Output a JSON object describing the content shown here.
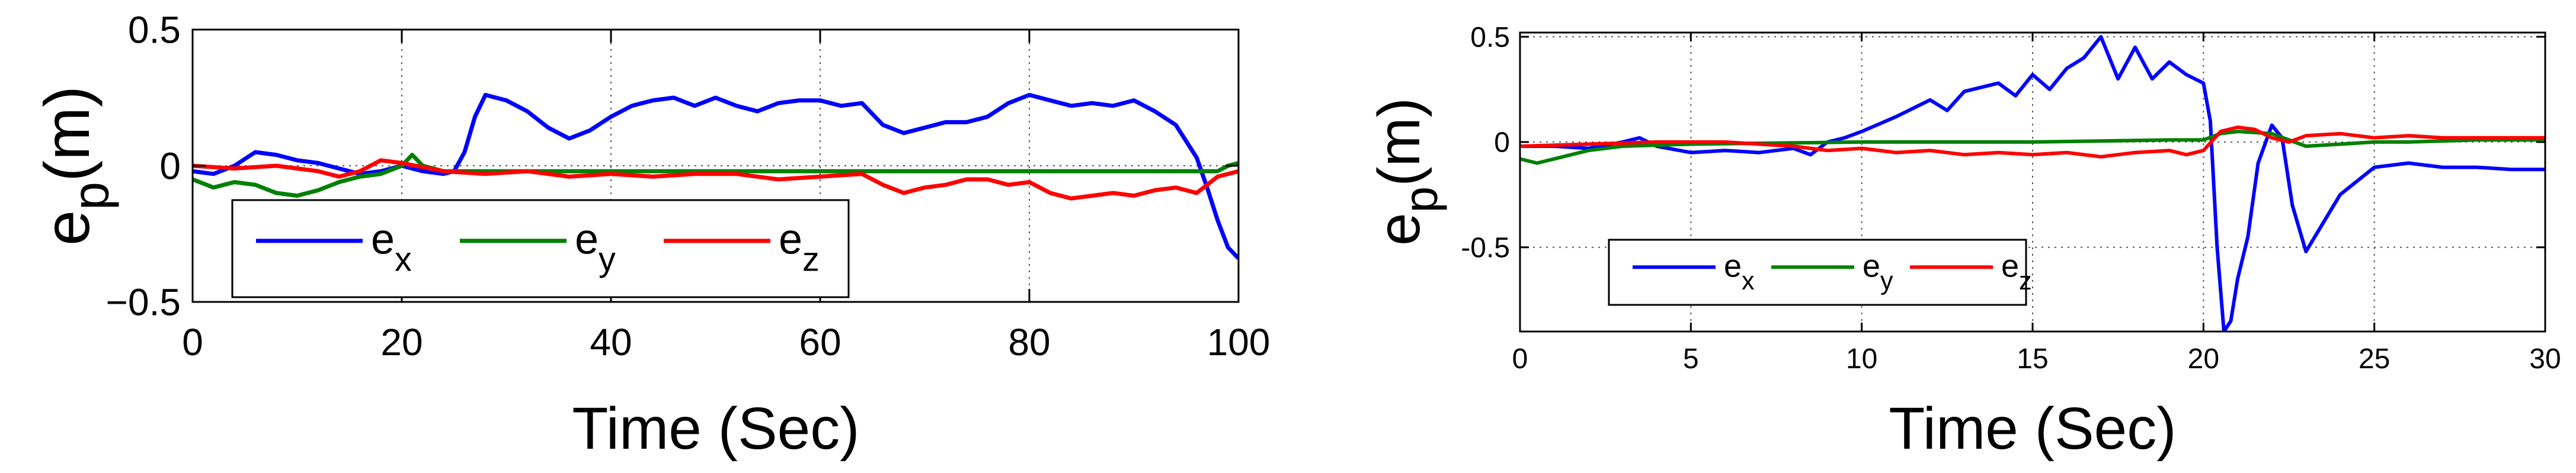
{
  "chart_data": [
    {
      "type": "line",
      "xlabel": "Time (Sec)",
      "ylabel_main": "e",
      "ylabel_sub": "p",
      "ylabel_unit": "(m)",
      "xlim": [
        0,
        100
      ],
      "ylim": [
        -0.5,
        0.5
      ],
      "xticks": [
        0,
        20,
        40,
        60,
        80,
        100
      ],
      "xtick_labels": [
        "0",
        "20",
        "40",
        "60",
        "80",
        "100"
      ],
      "yticks": [
        0.5,
        0,
        -0.5
      ],
      "ytick_labels": [
        "0.5",
        "0",
        "−0.5"
      ],
      "grid": true,
      "legend_position": "bottom-left",
      "series": [
        {
          "name": "e",
          "name_sub": "x",
          "color": "#0000ff",
          "x": [
            0,
            2,
            4,
            6,
            8,
            10,
            12,
            14,
            16,
            18,
            20,
            22,
            24,
            25,
            26,
            27,
            28,
            30,
            32,
            34,
            36,
            38,
            40,
            42,
            44,
            46,
            48,
            50,
            52,
            54,
            56,
            58,
            60,
            62,
            64,
            66,
            68,
            70,
            72,
            74,
            76,
            78,
            80,
            82,
            84,
            86,
            88,
            90,
            92,
            94,
            96,
            97,
            98,
            99,
            100
          ],
          "y": [
            -0.02,
            -0.03,
            0.0,
            0.05,
            0.04,
            0.02,
            0.01,
            -0.01,
            -0.03,
            -0.02,
            0.0,
            -0.02,
            -0.03,
            -0.02,
            0.05,
            0.18,
            0.26,
            0.24,
            0.2,
            0.14,
            0.1,
            0.13,
            0.18,
            0.22,
            0.24,
            0.25,
            0.22,
            0.25,
            0.22,
            0.2,
            0.23,
            0.24,
            0.24,
            0.22,
            0.23,
            0.15,
            0.12,
            0.14,
            0.16,
            0.16,
            0.18,
            0.23,
            0.26,
            0.24,
            0.22,
            0.23,
            0.22,
            0.24,
            0.2,
            0.15,
            0.03,
            -0.08,
            -0.2,
            -0.3,
            -0.34
          ]
        },
        {
          "name": "e",
          "name_sub": "y",
          "color": "#008000",
          "x": [
            0,
            2,
            4,
            6,
            8,
            10,
            12,
            14,
            16,
            18,
            20,
            21,
            22,
            24,
            26,
            30,
            40,
            50,
            60,
            70,
            80,
            90,
            95,
            98,
            99,
            100
          ],
          "y": [
            -0.05,
            -0.08,
            -0.06,
            -0.07,
            -0.1,
            -0.11,
            -0.09,
            -0.06,
            -0.04,
            -0.03,
            0.0,
            0.04,
            0.0,
            -0.02,
            -0.02,
            -0.02,
            -0.02,
            -0.02,
            -0.02,
            -0.02,
            -0.02,
            -0.02,
            -0.02,
            -0.02,
            0.0,
            0.01
          ]
        },
        {
          "name": "e",
          "name_sub": "z",
          "color": "#ff0000",
          "x": [
            0,
            4,
            8,
            12,
            14,
            16,
            18,
            20,
            24,
            28,
            32,
            36,
            40,
            44,
            48,
            52,
            56,
            60,
            64,
            66,
            68,
            70,
            72,
            74,
            76,
            78,
            80,
            82,
            84,
            86,
            88,
            90,
            92,
            94,
            96,
            98,
            100
          ],
          "y": [
            0.0,
            -0.01,
            0.0,
            -0.02,
            -0.04,
            -0.02,
            0.02,
            0.01,
            -0.02,
            -0.03,
            -0.02,
            -0.04,
            -0.03,
            -0.04,
            -0.03,
            -0.03,
            -0.05,
            -0.04,
            -0.03,
            -0.07,
            -0.1,
            -0.08,
            -0.07,
            -0.05,
            -0.05,
            -0.07,
            -0.06,
            -0.1,
            -0.12,
            -0.11,
            -0.1,
            -0.11,
            -0.09,
            -0.08,
            -0.1,
            -0.04,
            -0.02
          ]
        }
      ]
    },
    {
      "type": "line",
      "xlabel": "Time (Sec)",
      "ylabel_main": "e",
      "ylabel_sub": "p",
      "ylabel_unit": "(m)",
      "xlim": [
        0,
        30
      ],
      "ylim": [
        -0.9,
        0.52
      ],
      "xticks": [
        0,
        5,
        10,
        15,
        20,
        25,
        30
      ],
      "xtick_labels": [
        "0",
        "5",
        "10",
        "15",
        "20",
        "25",
        "30"
      ],
      "yticks": [
        0.5,
        0,
        -0.5
      ],
      "ytick_labels": [
        "0.5",
        "0",
        "-0.5"
      ],
      "grid": true,
      "legend_position": "bottom-left",
      "series": [
        {
          "name": "e",
          "name_sub": "x",
          "color": "#0000ff",
          "x": [
            0,
            1,
            2,
            3,
            3.5,
            4,
            5,
            6,
            7,
            8,
            8.5,
            9,
            9.5,
            10,
            11,
            12,
            12.5,
            13,
            14,
            14.5,
            15,
            15.5,
            16,
            16.5,
            17,
            17.5,
            18,
            18.5,
            19,
            19.5,
            20,
            20.2,
            20.4,
            20.6,
            20.8,
            21,
            21.3,
            21.6,
            22,
            22.3,
            22.6,
            23,
            24,
            25,
            26,
            27,
            28,
            29,
            30
          ],
          "y": [
            -0.02,
            -0.02,
            -0.03,
            0.0,
            0.02,
            -0.02,
            -0.05,
            -0.04,
            -0.05,
            -0.03,
            -0.06,
            0.0,
            0.02,
            0.05,
            0.12,
            0.2,
            0.15,
            0.24,
            0.28,
            0.22,
            0.32,
            0.25,
            0.35,
            0.4,
            0.5,
            0.3,
            0.45,
            0.3,
            0.38,
            0.32,
            0.28,
            0.1,
            -0.5,
            -0.9,
            -0.85,
            -0.65,
            -0.45,
            -0.1,
            0.08,
            0.02,
            -0.3,
            -0.52,
            -0.25,
            -0.12,
            -0.1,
            -0.12,
            -0.12,
            -0.13,
            -0.13
          ]
        },
        {
          "name": "e",
          "name_sub": "y",
          "color": "#008000",
          "x": [
            0,
            0.5,
            1,
            1.5,
            2,
            3,
            5,
            10,
            15,
            19,
            20,
            20.5,
            21,
            22,
            23,
            24,
            25,
            26,
            28,
            30
          ],
          "y": [
            -0.08,
            -0.1,
            -0.08,
            -0.06,
            -0.04,
            -0.02,
            -0.01,
            0.0,
            0.0,
            0.01,
            0.01,
            0.04,
            0.05,
            0.04,
            -0.02,
            -0.01,
            0.0,
            0.0,
            0.01,
            0.01
          ]
        },
        {
          "name": "e",
          "name_sub": "z",
          "color": "#ff0000",
          "x": [
            0,
            2,
            4,
            6,
            8,
            9,
            10,
            11,
            12,
            13,
            14,
            15,
            16,
            17,
            18,
            19,
            19.5,
            20,
            20.5,
            21,
            21.5,
            22,
            22.5,
            23,
            24,
            25,
            26,
            27,
            28,
            30
          ],
          "y": [
            -0.02,
            -0.01,
            0.0,
            0.0,
            -0.02,
            -0.04,
            -0.03,
            -0.05,
            -0.04,
            -0.06,
            -0.05,
            -0.06,
            -0.05,
            -0.07,
            -0.05,
            -0.04,
            -0.06,
            -0.04,
            0.05,
            0.07,
            0.06,
            0.02,
            0.0,
            0.03,
            0.04,
            0.02,
            0.03,
            0.02,
            0.02,
            0.02
          ]
        }
      ]
    }
  ]
}
